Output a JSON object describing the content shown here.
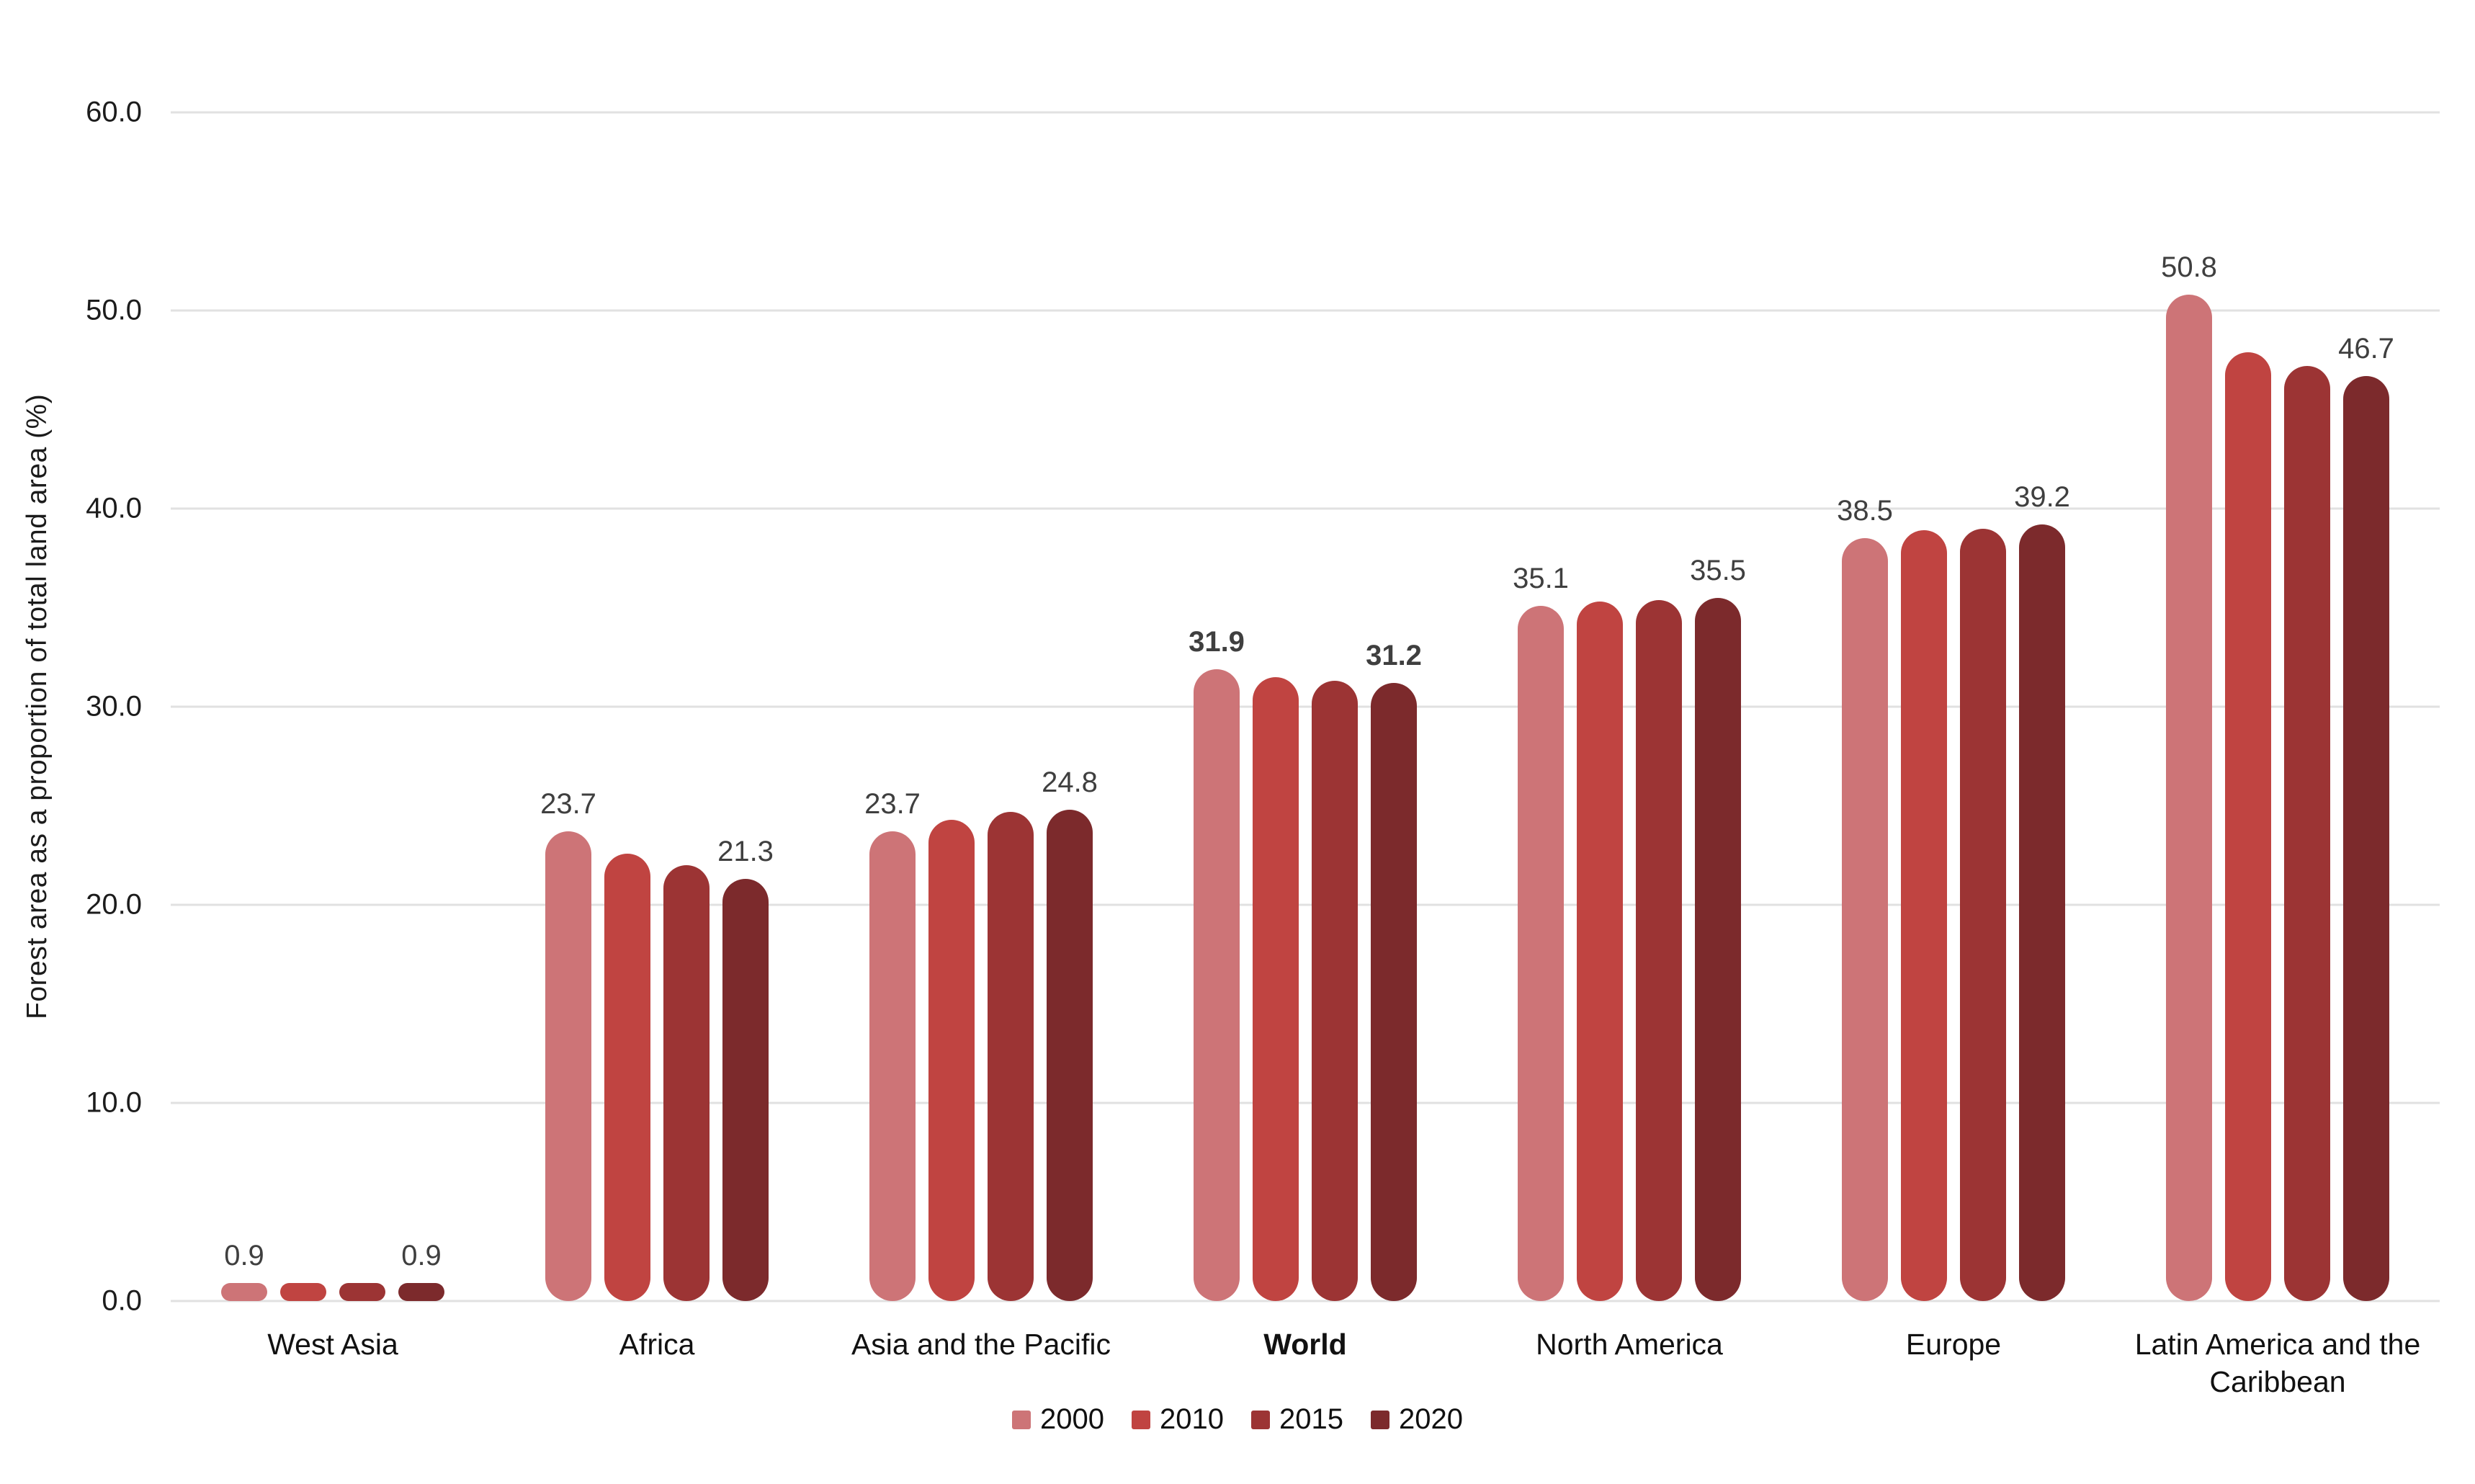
{
  "chart_data": {
    "type": "bar",
    "title": "",
    "ylabel": "Forest area as a proportion of total land area (%)",
    "xlabel": "",
    "ylim": [
      0,
      60
    ],
    "yticks": [
      "0.0",
      "10.0",
      "20.0",
      "30.0",
      "40.0",
      "50.0",
      "60.0"
    ],
    "grid": true,
    "legend_position": "bottom",
    "categories": [
      "West Asia",
      "Africa",
      "Asia and the Pacific",
      "World",
      "North America",
      "Europe",
      "Latin America and the\nCaribbean"
    ],
    "emphasized_category": "World",
    "series": [
      {
        "name": "2000",
        "color": "#CD7477",
        "values": [
          0.9,
          23.7,
          23.7,
          31.9,
          35.1,
          38.5,
          50.8
        ]
      },
      {
        "name": "2010",
        "color": "#C04441",
        "values": [
          0.9,
          22.6,
          24.3,
          31.5,
          35.3,
          38.9,
          47.9
        ]
      },
      {
        "name": "2015",
        "color": "#9C3434",
        "values": [
          0.9,
          22.0,
          24.7,
          31.3,
          35.4,
          39.0,
          47.2
        ]
      },
      {
        "name": "2020",
        "color": "#7C2A2C",
        "values": [
          0.9,
          21.3,
          24.8,
          31.2,
          35.5,
          39.2,
          46.7
        ]
      }
    ],
    "data_labels": {
      "shown_for_series": [
        "2000",
        "2020"
      ],
      "values": [
        [
          "0.9",
          "0.9"
        ],
        [
          "23.7",
          "21.3"
        ],
        [
          "23.7",
          "24.8"
        ],
        [
          "31.9",
          "31.2"
        ],
        [
          "35.1",
          "35.5"
        ],
        [
          "38.5",
          "39.2"
        ],
        [
          "50.8",
          "46.7"
        ]
      ]
    },
    "colors": {
      "gridline": "#E1E1E1",
      "value_label": "#3F3F3F",
      "axis_text": "#1C1C1C"
    }
  }
}
